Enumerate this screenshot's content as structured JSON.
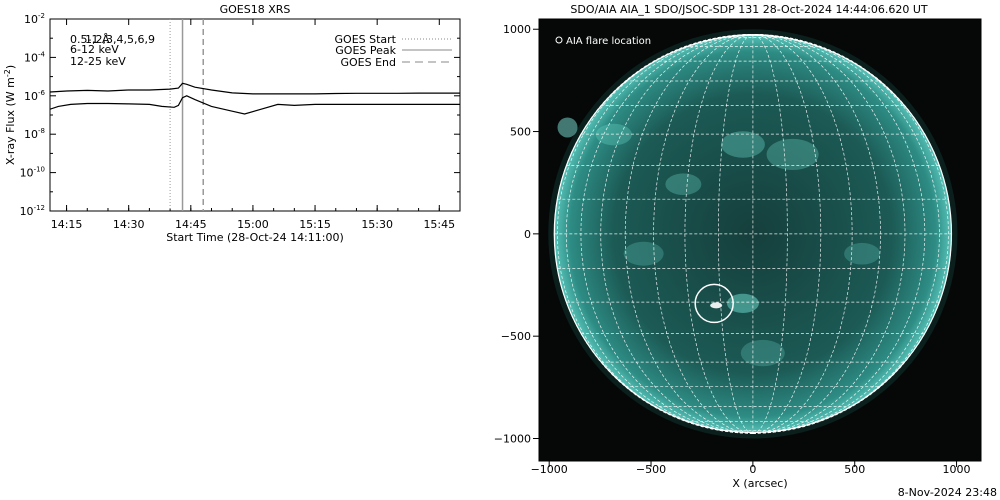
{
  "chart_data": [
    {
      "type": "line",
      "title": "GOES18 XRS",
      "xlabel": "Start Time (28-Oct-24 14:11:00)",
      "ylabel_main": "X-ray Flux (W m",
      "ylabel_sup": "-2",
      "ylabel_close": ")",
      "y_scale": "log",
      "xlim_minutes_labels": [
        "14:11",
        "15:50"
      ],
      "ylim": [
        "1e-12",
        "1e-2"
      ],
      "x_ticks": [
        "14:15",
        "14:30",
        "14:45",
        "15:00",
        "15:15",
        "15:30",
        "15:45"
      ],
      "y_ticks": [
        {
          "base": "10",
          "exp": "-2"
        },
        {
          "base": "10",
          "exp": "-4"
        },
        {
          "base": "10",
          "exp": "-6"
        },
        {
          "base": "10",
          "exp": "-8"
        },
        {
          "base": "10",
          "exp": "-10"
        },
        {
          "base": "10",
          "exp": "-12"
        }
      ],
      "legend_left": [
        {
          "label": "0.5-1 Å",
          "color": "#000000"
        },
        {
          "label": "1,2,3,4,5,6,9",
          "color": "#000000"
        },
        {
          "label": "6-12 keV",
          "color": "#cc00cc"
        },
        {
          "label": "12-25 keV",
          "color": "#00cc00"
        }
      ],
      "legend_right": [
        {
          "label": "GOES Start",
          "style": "dotted"
        },
        {
          "label": "GOES Peak",
          "style": "solid"
        },
        {
          "label": "GOES End",
          "style": "dashed"
        }
      ],
      "event_lines": {
        "start": "14:40",
        "peak": "14:43",
        "end": "14:48"
      },
      "series": [
        {
          "name": "1-8 Å",
          "time": [
            "14:11",
            "14:15",
            "14:20",
            "14:25",
            "14:30",
            "14:35",
            "14:40",
            "14:42",
            "14:43",
            "14:44",
            "14:46",
            "14:50",
            "14:55",
            "15:00",
            "15:05",
            "15:10",
            "15:15",
            "15:20",
            "15:25",
            "15:30",
            "15:35",
            "15:40",
            "15:45",
            "15:50"
          ],
          "flux_exp": [
            -5.8,
            -5.75,
            -5.72,
            -5.75,
            -5.7,
            -5.7,
            -5.65,
            -5.6,
            -5.35,
            -5.4,
            -5.55,
            -5.7,
            -5.85,
            -5.9,
            -5.9,
            -5.9,
            -5.9,
            -5.88,
            -5.87,
            -5.87,
            -5.87,
            -5.86,
            -5.86,
            -5.86
          ]
        },
        {
          "name": "0.5-4 Å",
          "time": [
            "14:11",
            "14:13",
            "14:16",
            "14:20",
            "14:25",
            "14:30",
            "14:35",
            "14:38",
            "14:41",
            "14:42",
            "14:43",
            "14:44",
            "14:46",
            "14:50",
            "14:55",
            "14:58",
            "15:02",
            "15:06",
            "15:10",
            "15:15",
            "15:20",
            "15:25",
            "15:30",
            "15:35",
            "15:40",
            "15:45",
            "15:50"
          ],
          "flux_exp": [
            -6.7,
            -6.55,
            -6.45,
            -6.4,
            -6.4,
            -6.42,
            -6.45,
            -6.55,
            -6.6,
            -6.5,
            -6.1,
            -6.0,
            -6.2,
            -6.55,
            -6.8,
            -6.95,
            -6.7,
            -6.45,
            -6.5,
            -6.45,
            -6.45,
            -6.45,
            -6.45,
            -6.45,
            -6.45,
            -6.45,
            -6.45
          ]
        }
      ]
    },
    {
      "type": "image",
      "title": "SDO/AIA AIA_1 SDO/JSOC-SDP 131 28-Oct-2024 14:44:06.620 UT",
      "xlabel": "X (arcsec)",
      "xlim": [
        -1050,
        1120
      ],
      "ylim": [
        -1110,
        1050
      ],
      "x_ticks": [
        "−1000",
        "−500",
        "0",
        "500",
        "1000"
      ],
      "y_ticks": [
        "1000",
        "500",
        "0",
        "−500",
        "−1000"
      ],
      "legend": "AIA flare location",
      "solar_radius_arcsec": 975,
      "flare_location_arcsec": [
        -190,
        -340
      ],
      "colors": {
        "disk": "#1f7f78",
        "limb": "#4fb9b0",
        "background": "#050807"
      }
    }
  ],
  "footer_timestamp": "8-Nov-2024 23:48"
}
